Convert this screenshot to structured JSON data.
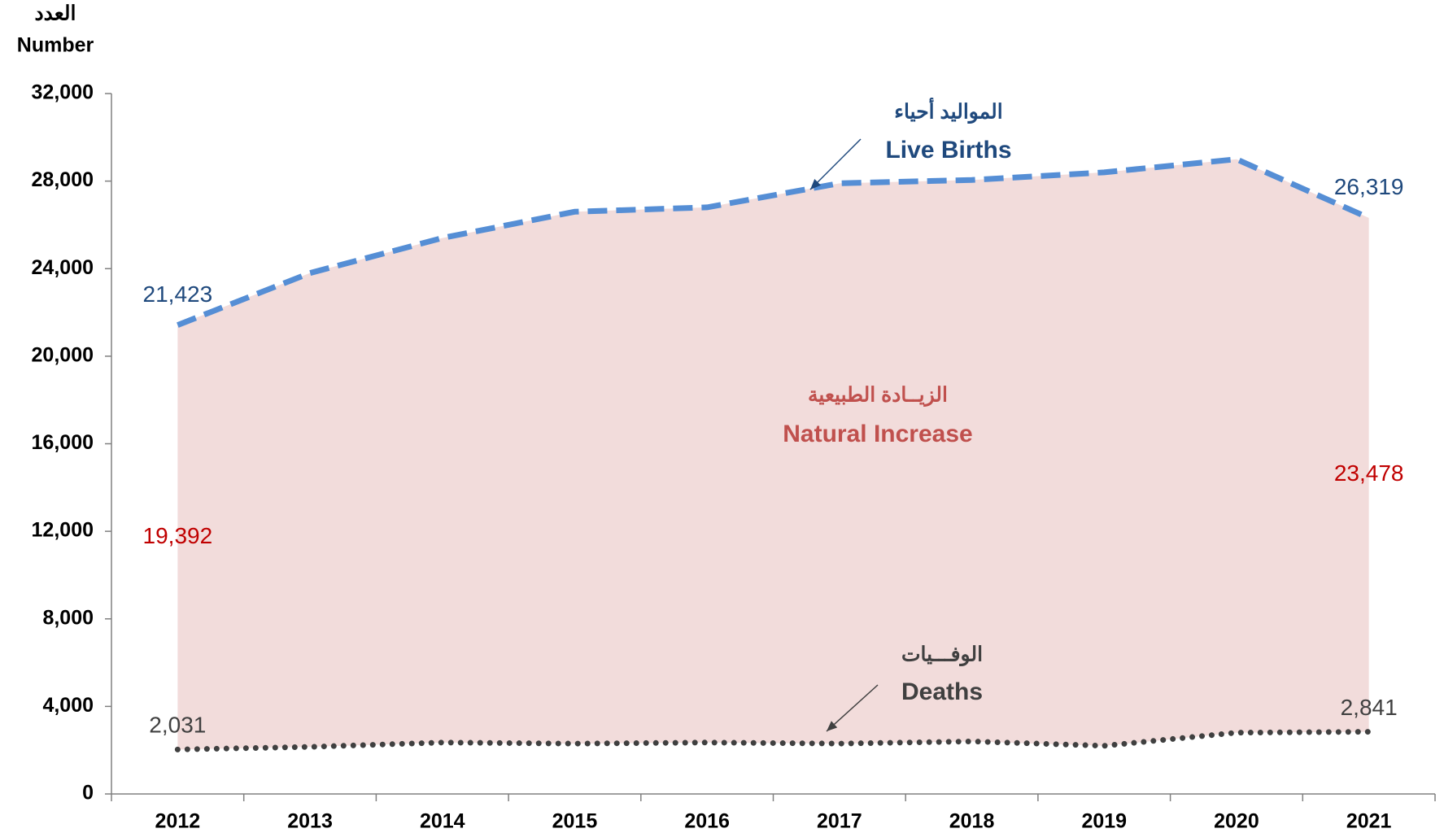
{
  "chart_data": {
    "type": "line",
    "y_axis_label_ar": "العدد",
    "y_axis_label": "Number",
    "categories": [
      "2012",
      "2013",
      "2014",
      "2015",
      "2016",
      "2017",
      "2018",
      "2019",
      "2020",
      "2021"
    ],
    "ylim": [
      0,
      32000
    ],
    "yticks": [
      0,
      {
        "value": 4000,
        "label": "4,000"
      },
      {
        "value": 8000,
        "label": "8,000"
      },
      {
        "value": 12000,
        "label": "12,000"
      },
      {
        "value": 16000,
        "label": "16,000"
      },
      {
        "value": 20000,
        "label": "20,000"
      },
      {
        "value": 24000,
        "label": "24,000"
      },
      {
        "value": 28000,
        "label": "28,000"
      },
      {
        "value": 32000,
        "label": "32,000"
      }
    ],
    "grid": false,
    "area_color": "#f2dcdb",
    "series": [
      {
        "name": "Live Births",
        "name_ar": "المواليد أحياء",
        "color": "#558ed5",
        "label_color": "#1f497d",
        "style": "dashed",
        "values": [
          21423,
          23800,
          25400,
          26600,
          26800,
          27900,
          28050,
          28400,
          29000,
          26319
        ],
        "value_labels": [
          "21,423",
          null,
          null,
          null,
          null,
          null,
          null,
          null,
          null,
          "26,319"
        ]
      },
      {
        "name": "Deaths",
        "name_ar": "الوفـــيات",
        "color": "#404040",
        "label_color": "#404040",
        "style": "dotted",
        "values": [
          2031,
          2150,
          2350,
          2300,
          2350,
          2300,
          2400,
          2200,
          2800,
          2841
        ],
        "value_labels": [
          "2,031",
          null,
          null,
          null,
          null,
          null,
          null,
          null,
          null,
          "2,841"
        ]
      },
      {
        "name": "Natural Increase",
        "name_ar": "الزيــادة الطبيعية",
        "color": "#c0504d",
        "label_color": "#c00000",
        "style": "area",
        "values": [
          19392,
          null,
          null,
          null,
          null,
          null,
          null,
          null,
          null,
          23478
        ],
        "value_labels": [
          "19,392",
          null,
          null,
          null,
          null,
          null,
          null,
          null,
          null,
          "23,478"
        ]
      }
    ]
  }
}
